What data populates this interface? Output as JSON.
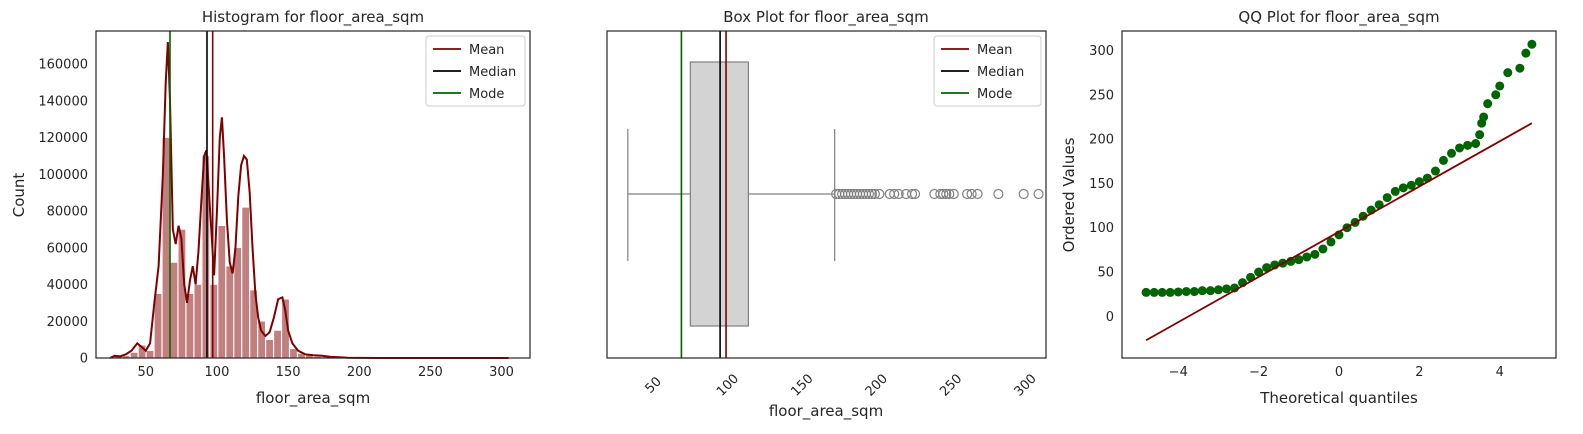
{
  "chart_data": [
    {
      "type": "bar",
      "title": "Histogram for floor_area_sqm",
      "xlabel": "floor_area_sqm",
      "ylabel": "Count",
      "xlim": [
        15,
        320
      ],
      "ylim": [
        0,
        178000
      ],
      "xticks": [
        50,
        100,
        150,
        200,
        250,
        300
      ],
      "yticks": [
        0,
        20000,
        40000,
        60000,
        80000,
        100000,
        120000,
        140000,
        160000
      ],
      "bin_width": 5.6,
      "bars": [
        {
          "x": 28,
          "y": 1500
        },
        {
          "x": 33.6,
          "y": 1200
        },
        {
          "x": 39.2,
          "y": 3000
        },
        {
          "x": 44.8,
          "y": 7000
        },
        {
          "x": 50.4,
          "y": 4000
        },
        {
          "x": 56,
          "y": 35000
        },
        {
          "x": 61.6,
          "y": 120000
        },
        {
          "x": 67.2,
          "y": 52000
        },
        {
          "x": 72.8,
          "y": 70000
        },
        {
          "x": 78.4,
          "y": 35000
        },
        {
          "x": 84,
          "y": 40000
        },
        {
          "x": 89.6,
          "y": 110000
        },
        {
          "x": 95.2,
          "y": 40000
        },
        {
          "x": 100.8,
          "y": 72000
        },
        {
          "x": 106.4,
          "y": 50000
        },
        {
          "x": 112,
          "y": 60000
        },
        {
          "x": 117.6,
          "y": 82000
        },
        {
          "x": 123.2,
          "y": 37000
        },
        {
          "x": 128.8,
          "y": 20000
        },
        {
          "x": 134.4,
          "y": 10000
        },
        {
          "x": 140,
          "y": 15000
        },
        {
          "x": 145.6,
          "y": 32000
        },
        {
          "x": 151.2,
          "y": 5000
        },
        {
          "x": 156.8,
          "y": 2500
        },
        {
          "x": 162.4,
          "y": 1500
        },
        {
          "x": 168,
          "y": 800
        },
        {
          "x": 173.6,
          "y": 600
        },
        {
          "x": 179.2,
          "y": 300
        },
        {
          "x": 184.8,
          "y": 200
        },
        {
          "x": 190.4,
          "y": 100
        }
      ],
      "kde": [
        [
          25,
          0
        ],
        [
          28,
          1200
        ],
        [
          32,
          900
        ],
        [
          36,
          2000
        ],
        [
          40,
          4000
        ],
        [
          44,
          8000
        ],
        [
          47,
          6000
        ],
        [
          50,
          4000
        ],
        [
          53,
          8000
        ],
        [
          56,
          30000
        ],
        [
          59,
          50000
        ],
        [
          62,
          100000
        ],
        [
          64,
          150000
        ],
        [
          65.5,
          172000
        ],
        [
          67,
          140000
        ],
        [
          69,
          70000
        ],
        [
          71,
          62000
        ],
        [
          73,
          72000
        ],
        [
          75,
          65000
        ],
        [
          77,
          40000
        ],
        [
          79,
          30000
        ],
        [
          81,
          42000
        ],
        [
          83,
          50000
        ],
        [
          85,
          40000
        ],
        [
          87,
          58000
        ],
        [
          89,
          85000
        ],
        [
          91,
          110000
        ],
        [
          92.5,
          113000
        ],
        [
          94,
          95000
        ],
        [
          96,
          70000
        ],
        [
          98,
          45000
        ],
        [
          100,
          80000
        ],
        [
          102,
          120000
        ],
        [
          103.5,
          131000
        ],
        [
          105,
          110000
        ],
        [
          107,
          75000
        ],
        [
          109,
          52000
        ],
        [
          111,
          46000
        ],
        [
          113,
          60000
        ],
        [
          115,
          88000
        ],
        [
          117,
          105000
        ],
        [
          119,
          110000
        ],
        [
          121,
          108000
        ],
        [
          123,
          90000
        ],
        [
          125,
          60000
        ],
        [
          127,
          35000
        ],
        [
          129,
          22000
        ],
        [
          131,
          15000
        ],
        [
          134,
          12000
        ],
        [
          137,
          14000
        ],
        [
          140,
          22000
        ],
        [
          143,
          32000
        ],
        [
          146,
          33000
        ],
        [
          148,
          26000
        ],
        [
          150,
          15000
        ],
        [
          153,
          8000
        ],
        [
          157,
          4000
        ],
        [
          162,
          2000
        ],
        [
          168,
          1500
        ],
        [
          174,
          1200
        ],
        [
          180,
          600
        ],
        [
          186,
          400
        ],
        [
          192,
          150
        ],
        [
          200,
          50
        ],
        [
          220,
          0
        ],
        [
          260,
          0
        ],
        [
          305,
          0
        ]
      ],
      "lines": {
        "mean": 97,
        "median": 93,
        "mode": 67
      },
      "legend": {
        "placement": "top-right",
        "entries": [
          "Mean",
          "Median",
          "Mode"
        ]
      },
      "colors": {
        "bar": "#c17f7f",
        "kde": "#7f0000",
        "mean": "#7f0000",
        "median": "#000000",
        "mode": "#006400"
      }
    },
    {
      "type": "box",
      "title": "Box Plot for floor_area_sqm",
      "xlabel": "floor_area_sqm",
      "xlim": [
        17,
        312
      ],
      "xticks": [
        50,
        100,
        150,
        200,
        250,
        300
      ],
      "box": {
        "whisker_low": 31,
        "q1": 73,
        "median": 93,
        "q3": 112,
        "whisker_high": 170
      },
      "outliers": [
        171,
        173,
        175,
        177,
        179,
        181,
        183,
        185,
        187,
        189,
        191,
        193,
        195,
        197,
        200,
        207,
        210,
        213,
        218,
        222,
        224,
        237,
        241,
        243,
        245,
        247,
        250,
        259,
        262,
        266,
        280,
        297,
        307
      ],
      "lines": {
        "mean": 97,
        "median": 93,
        "mode": 67
      },
      "legend": {
        "placement": "top-right",
        "entries": [
          "Mean",
          "Median",
          "Mode"
        ]
      },
      "colors": {
        "box": "#d3d3d3",
        "edge": "#808080",
        "mean": "#7f0000",
        "median": "#000000",
        "mode": "#006400"
      }
    },
    {
      "type": "scatter",
      "title": "QQ Plot for floor_area_sqm",
      "xlabel": "Theoretical quantiles",
      "ylabel": "Ordered Values",
      "xlim": [
        -5.4,
        5.4
      ],
      "ylim": [
        -47,
        322
      ],
      "xticks": [
        -4,
        -2,
        0,
        2,
        4
      ],
      "yticks": [
        0,
        50,
        100,
        150,
        200,
        250,
        300
      ],
      "points": [
        [
          -4.8,
          27
        ],
        [
          -4.6,
          27
        ],
        [
          -4.4,
          27
        ],
        [
          -4.2,
          27
        ],
        [
          -4.0,
          27.5
        ],
        [
          -3.8,
          28
        ],
        [
          -3.6,
          28
        ],
        [
          -3.4,
          29
        ],
        [
          -3.2,
          29
        ],
        [
          -3.0,
          30
        ],
        [
          -2.8,
          31
        ],
        [
          -2.6,
          32
        ],
        [
          -2.4,
          38
        ],
        [
          -2.2,
          44
        ],
        [
          -2.0,
          50
        ],
        [
          -1.8,
          55
        ],
        [
          -1.6,
          58
        ],
        [
          -1.4,
          60
        ],
        [
          -1.2,
          62
        ],
        [
          -1.0,
          64
        ],
        [
          -0.8,
          67
        ],
        [
          -0.6,
          70
        ],
        [
          -0.4,
          76
        ],
        [
          -0.2,
          84
        ],
        [
          0.0,
          92
        ],
        [
          0.2,
          100
        ],
        [
          0.4,
          106
        ],
        [
          0.6,
          113
        ],
        [
          0.8,
          120
        ],
        [
          1.0,
          126
        ],
        [
          1.2,
          134
        ],
        [
          1.4,
          141
        ],
        [
          1.6,
          145
        ],
        [
          1.8,
          148
        ],
        [
          2.0,
          152
        ],
        [
          2.2,
          156
        ],
        [
          2.4,
          164
        ],
        [
          2.6,
          176
        ],
        [
          2.8,
          184
        ],
        [
          3.0,
          190
        ],
        [
          3.2,
          193
        ],
        [
          3.4,
          195
        ],
        [
          3.5,
          205
        ],
        [
          3.55,
          218
        ],
        [
          3.6,
          225
        ],
        [
          3.7,
          240
        ],
        [
          3.9,
          250
        ],
        [
          4.0,
          260
        ],
        [
          4.2,
          275
        ],
        [
          4.5,
          280
        ],
        [
          4.65,
          297
        ],
        [
          4.8,
          307
        ]
      ],
      "fit_line": {
        "x": [
          -4.8,
          4.8
        ],
        "y": [
          -27,
          218
        ]
      },
      "colors": {
        "points": "#006400",
        "line": "#7f0000"
      }
    }
  ]
}
